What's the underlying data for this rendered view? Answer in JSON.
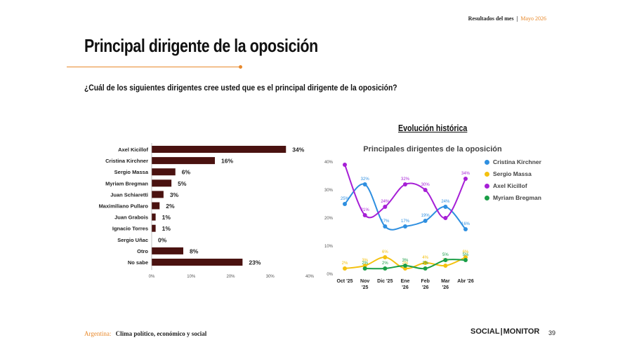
{
  "header": {
    "report": "Resultados del mes",
    "separator": "|",
    "month": "Mayo 2026"
  },
  "title": "Principal dirigente de la oposición",
  "question": "¿Cuál de los siguientes dirigentes cree usted que es el principal dirigente de la oposición?",
  "section_title": "Evolución histórica",
  "colors": {
    "accent": "#e8892b",
    "bar": "#4a1210",
    "cristina": "#2e8fe0",
    "massa": "#f4c10f",
    "kicillof": "#a61fd6",
    "bregman": "#1a9e46"
  },
  "footer": {
    "country": "Argentina:",
    "subtitle": "Clima político, económico y social",
    "logo1": "SOCIAL",
    "logo2": "MONITOR",
    "page": "39"
  },
  "chart_data": [
    {
      "type": "bar",
      "orientation": "horizontal",
      "categories": [
        "Axel Kicillof",
        "Cristina Kirchner",
        "Sergio Massa",
        "Myriam Bregman",
        "Juan Schiaretti",
        "Maximiliano Pullaro",
        "Juan Grabois",
        "Ignacio Torres",
        "Sergio Uñac",
        "Otro",
        "No sabe"
      ],
      "values": [
        34,
        16,
        6,
        5,
        3,
        2,
        1,
        1,
        0,
        8,
        23
      ],
      "value_labels": [
        "34%",
        "16%",
        "6%",
        "5%",
        "3%",
        "2%",
        "1%",
        "1%",
        "0%",
        "8%",
        "23%"
      ],
      "xlim": [
        0,
        40
      ],
      "ticks": [
        "0%",
        "10%",
        "20%",
        "30%",
        "40%"
      ],
      "grid": false
    },
    {
      "type": "line",
      "title": "Principales dirigentes de la oposición",
      "categories": [
        [
          "Oct '25"
        ],
        [
          "Nov",
          "'25"
        ],
        [
          "Dic '25"
        ],
        [
          "Ene",
          "'26"
        ],
        [
          "Feb",
          "'26"
        ],
        [
          "Mar",
          "'26"
        ],
        [
          "Abr '26"
        ]
      ],
      "ylim": [
        0,
        40
      ],
      "yticks": [
        "0%",
        "10%",
        "20%",
        "30%",
        "40%"
      ],
      "smooth": true,
      "legend_position": "right",
      "series": [
        {
          "name": "Cristina Kirchner",
          "color": "#2e8fe0",
          "values": [
            25,
            32,
            17,
            17,
            19,
            24,
            16
          ],
          "labels": [
            "25%",
            "32%",
            "17%",
            "17%",
            "19%",
            "24%",
            "16%"
          ]
        },
        {
          "name": "Sergio Massa",
          "color": "#f4c10f",
          "values": [
            2,
            3,
            6,
            2,
            4,
            3,
            6
          ],
          "labels": [
            "2%",
            "3%",
            "6%",
            "2%",
            "4%",
            "3%",
            "6%"
          ]
        },
        {
          "name": "Axel Kicillof",
          "color": "#a61fd6",
          "values": [
            39,
            21,
            24,
            32,
            30,
            20,
            34
          ],
          "labels": [
            "",
            "21%",
            "24%",
            "32%",
            "30%",
            "",
            "34%"
          ]
        },
        {
          "name": "Myriam Bregman",
          "color": "#1a9e46",
          "values": [
            null,
            2,
            2,
            3,
            2,
            5,
            5
          ],
          "labels": [
            "",
            "2%",
            "2%",
            "3%",
            "2%",
            "5%",
            "5%"
          ]
        }
      ]
    }
  ]
}
